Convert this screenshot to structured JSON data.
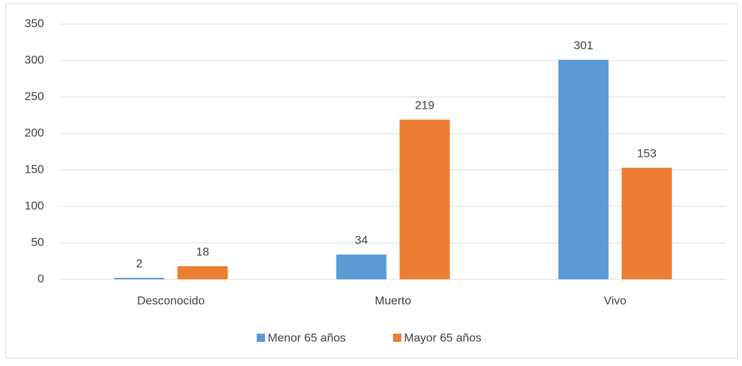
{
  "chart_data": {
    "type": "bar",
    "categories": [
      "Desconocido",
      "Muerto",
      "Vivo"
    ],
    "series": [
      {
        "name": "Menor 65 años",
        "color": "#5b9bd5",
        "values": [
          2,
          34,
          301
        ]
      },
      {
        "name": "Mayor 65 años",
        "color": "#ed7d31",
        "values": [
          18,
          219,
          153
        ]
      }
    ],
    "ylim": [
      0,
      350
    ],
    "yticks": [
      0,
      50,
      100,
      150,
      200,
      250,
      300,
      350
    ],
    "grid": true,
    "legend": "bottom",
    "data_labels": true
  }
}
